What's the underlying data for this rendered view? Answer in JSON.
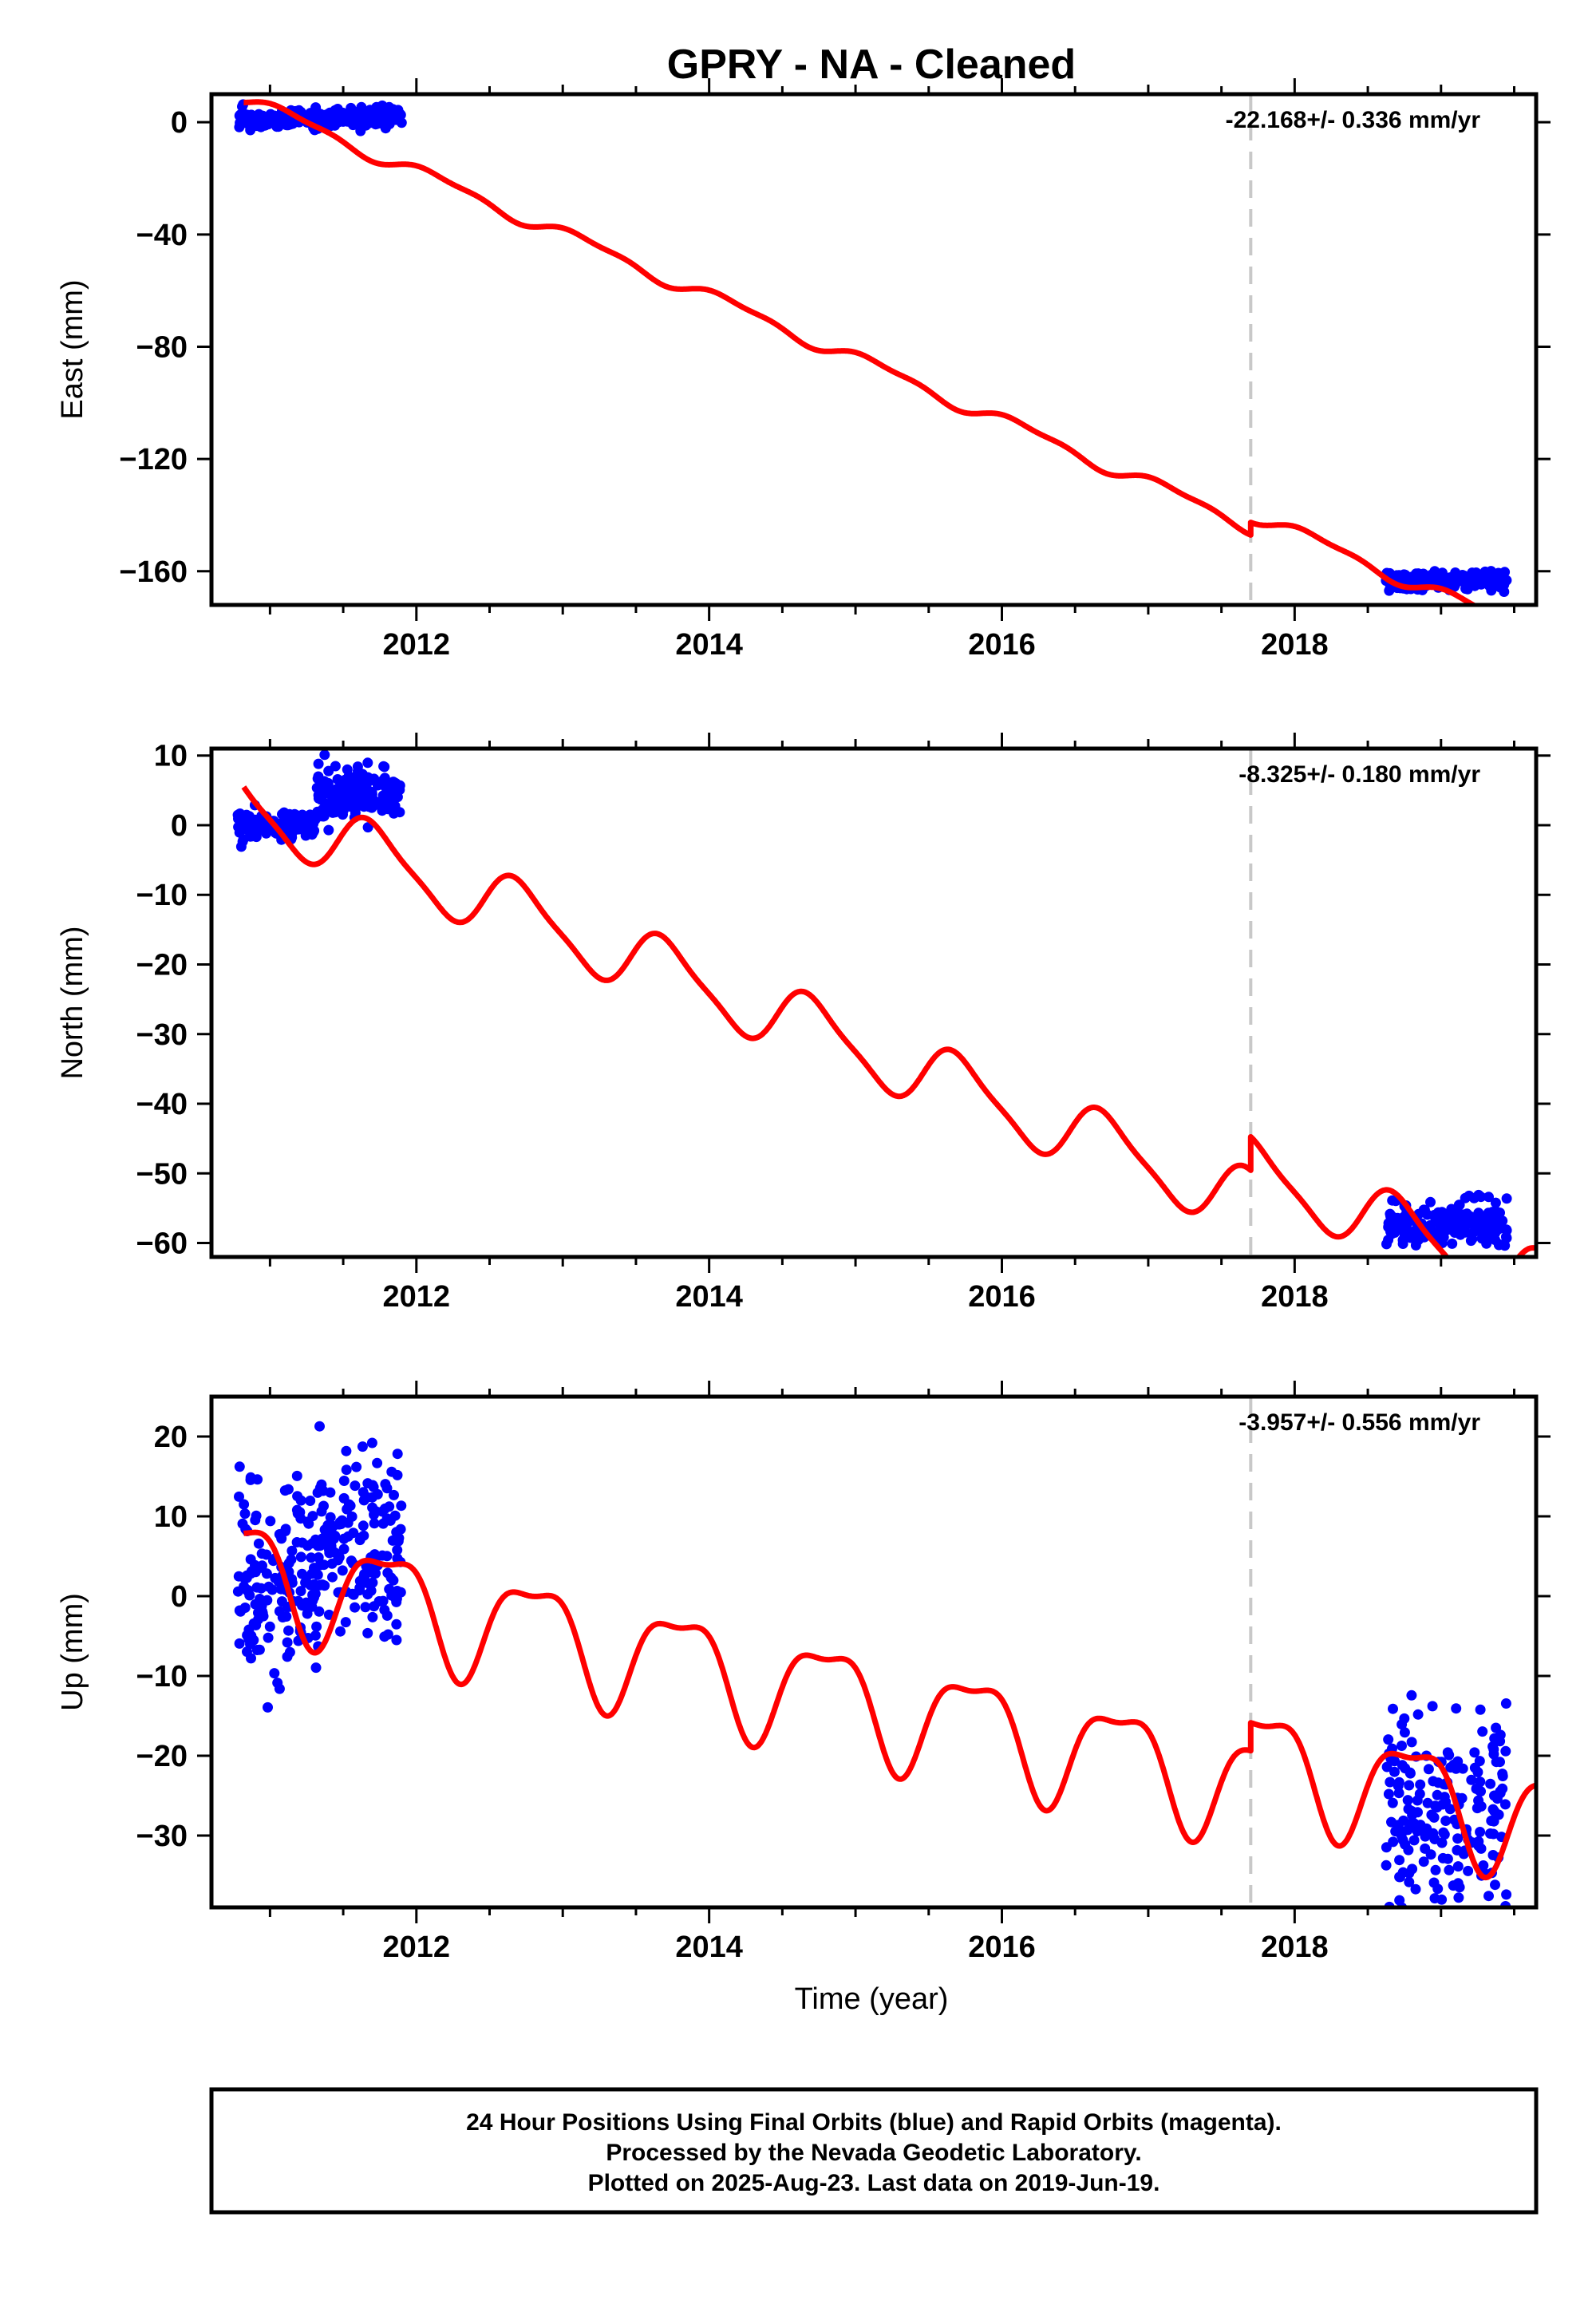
{
  "chart_data": {
    "title": "GPRY  - NA - Cleaned",
    "xlabel": "Time (year)",
    "x_range": [
      2010.6,
      2019.65
    ],
    "x_ticks": [
      2012,
      2014,
      2016,
      2018
    ],
    "vline_x": 2017.7,
    "colors": {
      "fit": "#ff0000",
      "data": "#0000ff",
      "vline": "#c8c8c8",
      "axis": "#000000"
    },
    "panels": [
      {
        "id": "east",
        "type": "scatter",
        "ylabel": "East (mm)",
        "rate_label": "-22.168+/- 0.336 mm/yr",
        "ylim": [
          -172,
          10
        ],
        "y_ticks": [
          0,
          -40,
          -80,
          -120,
          -160
        ],
        "model": {
          "vel": -22.168,
          "x0": 2010.82,
          "y0": 8.5,
          "amp_annual": 2.3,
          "amp_semi": 0.9,
          "phase_annual": 0.6,
          "phase_semi": 1.9,
          "offset_at_break": 4.5
        },
        "data_groups": [
          {
            "x": [
              2010.78,
              2011.3
            ],
            "mean": 1.0,
            "spread": 3.0,
            "n": 110,
            "seed": 11
          },
          {
            "x": [
              2011.3,
              2011.9
            ],
            "mean": 1.5,
            "spread": 4.0,
            "n": 140,
            "seed": 12
          },
          {
            "x": [
              2018.62,
              2019.45
            ],
            "mean": -163.5,
            "spread": 3.2,
            "n": 190,
            "seed": 13
          }
        ]
      },
      {
        "id": "north",
        "type": "scatter",
        "ylabel": "North (mm)",
        "rate_label": "-8.325+/- 0.180 mm/yr",
        "ylim": [
          -62,
          11
        ],
        "y_ticks": [
          10,
          0,
          -10,
          -20,
          -30,
          -40,
          -50,
          -60
        ],
        "model": {
          "vel": -8.325,
          "x0": 2010.82,
          "y0": 3.0,
          "amp_annual": 4.5,
          "amp_semi": 1.0,
          "phase_annual": 3.4,
          "phase_semi": 0.4,
          "offset_at_break": 4.8
        },
        "data_groups": [
          {
            "x": [
              2010.78,
              2011.32
            ],
            "mean": 0.0,
            "spread": 2.0,
            "n": 140,
            "seed": 21
          },
          {
            "x": [
              2011.32,
              2011.9
            ],
            "mean": 4.5,
            "spread": 3.5,
            "n": 160,
            "seed": 22
          },
          {
            "x": [
              2018.62,
              2019.45
            ],
            "mean": -57.0,
            "spread": 3.0,
            "n": 200,
            "seed": 23
          }
        ]
      },
      {
        "id": "up",
        "type": "scatter",
        "ylabel": "Up (mm)",
        "rate_label": "-3.957+/- 0.556 mm/yr",
        "ylim": [
          -39,
          25
        ],
        "y_ticks": [
          20,
          10,
          0,
          -10,
          -20,
          -30
        ],
        "model": {
          "vel": -3.957,
          "x0": 2010.82,
          "y0": 3.5,
          "amp_annual": 6.5,
          "amp_semi": 2.2,
          "phase_annual": 2.8,
          "phase_semi": 1.0,
          "offset_at_break": 3.5
        },
        "data_groups": [
          {
            "x": [
              2010.78,
              2011.32
            ],
            "mean": 2.0,
            "spread": 12.0,
            "n": 150,
            "seed": 31
          },
          {
            "x": [
              2011.32,
              2011.9
            ],
            "mean": 6.0,
            "spread": 13.0,
            "n": 160,
            "seed": 32
          },
          {
            "x": [
              2018.62,
              2019.45
            ],
            "mean": -27.0,
            "spread": 14.0,
            "n": 200,
            "seed": 33
          }
        ]
      }
    ]
  },
  "footer": {
    "line1": "24 Hour Positions Using Final Orbits (blue) and Rapid Orbits (magenta).",
    "line2": "Processed by the Nevada Geodetic Laboratory.",
    "line3": "Plotted on 2025-Aug-23. Last data on 2019-Jun-19."
  }
}
